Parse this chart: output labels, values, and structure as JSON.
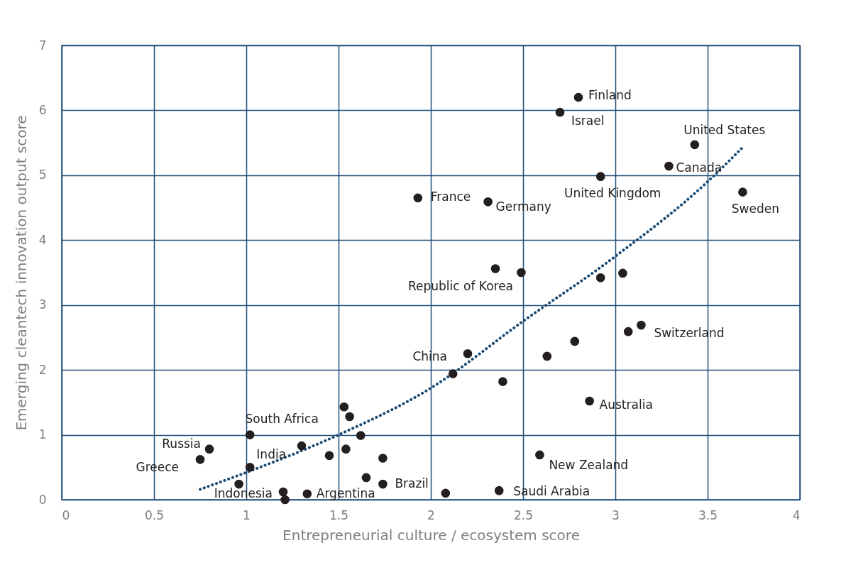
{
  "chart_data": {
    "type": "scatter",
    "xlabel": "Entrepreneurial culture / ecosystem  score",
    "ylabel": "Emerging cleantech innovation output score",
    "xlim": [
      0,
      4
    ],
    "xticks": [
      0,
      0.5,
      1,
      1.5,
      2,
      2.5,
      3,
      3.5,
      4
    ],
    "ylim": [
      0,
      7
    ],
    "yticks": [
      0,
      1,
      2,
      3,
      4,
      5,
      6,
      7
    ],
    "grid": true,
    "series": [
      {
        "marker": "circle",
        "color": "#231f20",
        "x": [
          2.8,
          2.7,
          3.43,
          3.29,
          2.92,
          3.69,
          1.93,
          2.31,
          2.35,
          2.49,
          2.92,
          3.04,
          3.14,
          3.07,
          2.78,
          2.63,
          2.2,
          2.12,
          2.39,
          2.86,
          1.53,
          1.56,
          1.62,
          1.3,
          1.54,
          1.45,
          1.74,
          1.02,
          1.02,
          0.8,
          0.75,
          0.96,
          1.2,
          1.21,
          1.33,
          1.65,
          1.74,
          2.08,
          2.37,
          2.59
        ],
        "values": [
          6.2,
          5.97,
          5.47,
          5.14,
          4.98,
          4.74,
          4.65,
          4.59,
          3.56,
          3.5,
          3.42,
          3.49,
          2.69,
          2.59,
          2.44,
          2.21,
          2.25,
          1.94,
          1.82,
          1.52,
          1.43,
          1.28,
          0.99,
          0.83,
          0.78,
          0.68,
          0.64,
          1.0,
          0.5,
          0.78,
          0.62,
          0.24,
          0.12,
          0.0,
          0.09,
          0.34,
          0.24,
          0.1,
          0.14,
          0.69
        ]
      },
      {
        "type": "line",
        "marker": "none",
        "line_style": "dotted",
        "color": "#1a4a72",
        "x": [
          0.75,
          1.0,
          1.5,
          2.0,
          2.5,
          3.0,
          3.5,
          3.69
        ],
        "values": [
          0.16,
          0.42,
          1.0,
          1.72,
          2.75,
          3.75,
          4.9,
          5.43
        ]
      }
    ],
    "annotations": [
      {
        "text": "Finland",
        "x": 2.8,
        "y": 6.2
      },
      {
        "text": "Israel",
        "x": 2.7,
        "y": 5.97
      },
      {
        "text": "United States",
        "x": 3.43,
        "y": 5.47
      },
      {
        "text": "Canada",
        "x": 3.29,
        "y": 5.14
      },
      {
        "text": "United Kingdom",
        "x": 2.92,
        "y": 4.98
      },
      {
        "text": "Sweden",
        "x": 3.69,
        "y": 4.74
      },
      {
        "text": "France",
        "x": 1.93,
        "y": 4.65
      },
      {
        "text": "Germany",
        "x": 2.31,
        "y": 4.59
      },
      {
        "text": "Republic of Korea",
        "x": 2.35,
        "y": 3.56
      },
      {
        "text": "Switzerland",
        "x": 3.14,
        "y": 2.69
      },
      {
        "text": "China",
        "x": 2.2,
        "y": 2.25
      },
      {
        "text": "Australia",
        "x": 2.86,
        "y": 1.52
      },
      {
        "text": "South Africa",
        "x": 1.02,
        "y": 1.0
      },
      {
        "text": "India",
        "x": 1.02,
        "y": 0.5
      },
      {
        "text": "Russia",
        "x": 0.8,
        "y": 0.78
      },
      {
        "text": "Greece",
        "x": 0.75,
        "y": 0.62
      },
      {
        "text": "Indonesia",
        "x": 1.2,
        "y": 0.12
      },
      {
        "text": "Argentina",
        "x": 1.33,
        "y": 0.09
      },
      {
        "text": "Brazil",
        "x": 1.74,
        "y": 0.24
      },
      {
        "text": "Saudi Arabia",
        "x": 2.37,
        "y": 0.14
      },
      {
        "text": "New Zealand",
        "x": 2.59,
        "y": 0.69
      }
    ]
  }
}
